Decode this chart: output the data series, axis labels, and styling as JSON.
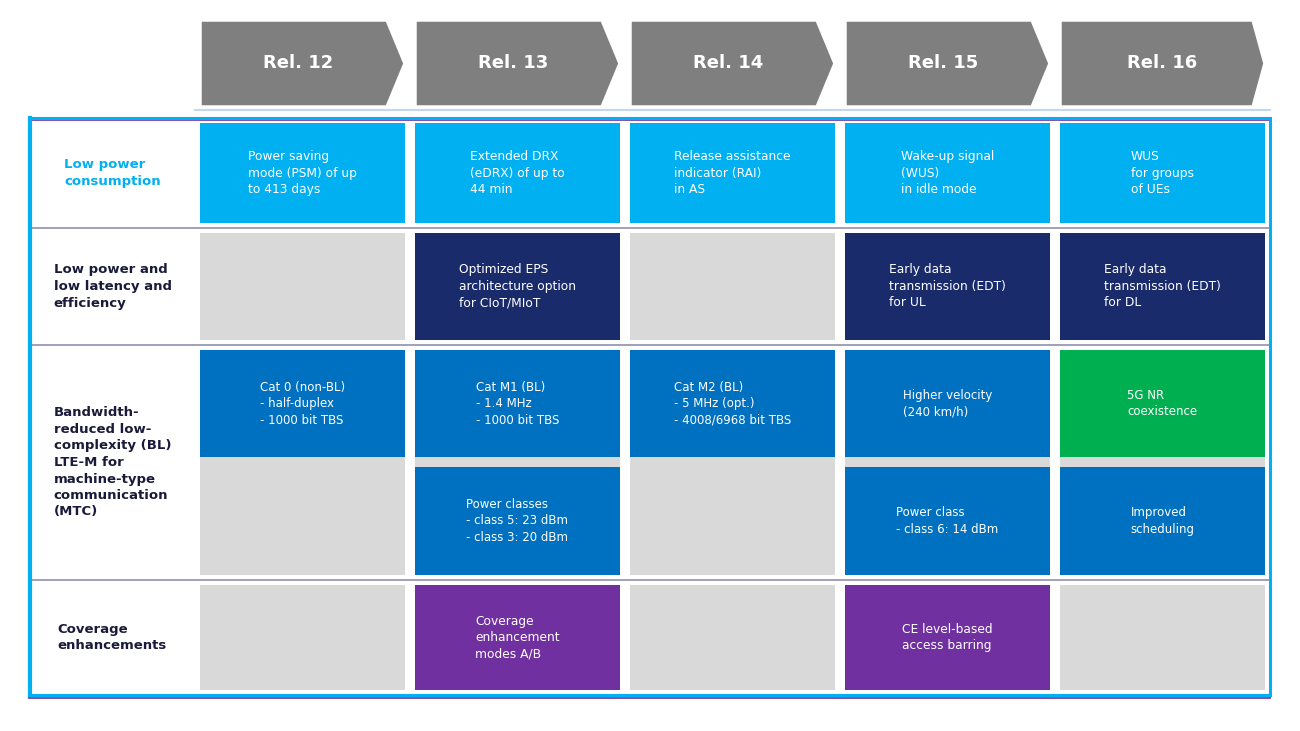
{
  "bg_color": "#ffffff",
  "header_color": "#7f7f7f",
  "header_text_color": "#ffffff",
  "header_labels": [
    "Rel. 12",
    "Rel. 13",
    "Rel. 14",
    "Rel. 15",
    "Rel. 16"
  ],
  "row_label_color": "#00b0f0",
  "row_label_dark_color": "#1f1f5f",
  "row_divider_color": "#7f7fbf",
  "cell_color_gray": "#d9d9d9",
  "outer_border_color": "#00b0f0",
  "outer_border_color2": "#7030a0",
  "row_labels": [
    "Low power\nconsumption",
    "Low power and\nlow latency and\nefficiency",
    "Bandwidth-\nreduced low-\ncomplexity (BL)\nLTE-M for\nmachine-type\ncommunication\n(MTC)",
    "Coverage\nenhancements"
  ],
  "row_label_is_colored": [
    true,
    false,
    false,
    false
  ],
  "cells_row0": [
    [
      "Power saving\nmode (PSM) of up\nto 413 days",
      "#00b0f0"
    ],
    [
      "Extended DRX\n(eDRX) of up to\n44 min",
      "#00b0f0"
    ],
    [
      "Release assistance\nindicator (RAI)\nin AS",
      "#00b0f0"
    ],
    [
      "Wake-up signal\n(WUS)\nin idle mode",
      "#00b0f0"
    ],
    [
      "WUS\nfor groups\nof UEs",
      "#00b0f0"
    ]
  ],
  "cells_row1": [
    [
      "",
      "#d9d9d9"
    ],
    [
      "Optimized EPS\narchitecture option\nfor CIoT/MIoT",
      "#1a2b6b"
    ],
    [
      "",
      "#d9d9d9"
    ],
    [
      "Early data\ntransmission (EDT)\nfor UL",
      "#1a2b6b"
    ],
    [
      "Early data\ntransmission (EDT)\nfor DL",
      "#1a2b6b"
    ]
  ],
  "cells_row2_top": [
    [
      "Cat 0 (non-BL)\n- half-duplex\n- 1000 bit TBS",
      "#0070c0"
    ],
    [
      "Cat M1 (BL)\n- 1.4 MHz\n- 1000 bit TBS",
      "#0070c0"
    ],
    [
      "Cat M2 (BL)\n- 5 MHz (opt.)\n- 4008/6968 bit TBS",
      "#0070c0"
    ],
    [
      "Higher velocity\n(240 km/h)",
      "#0070c0"
    ],
    [
      "5G NR\ncoexistence",
      "#00b050"
    ]
  ],
  "cells_row2_bot": [
    [
      "",
      "#d9d9d9"
    ],
    [
      "Power classes\n- class 5: 23 dBm\n- class 3: 20 dBm",
      "#0070c0"
    ],
    [
      "",
      "#d9d9d9"
    ],
    [
      "Power class\n- class 6: 14 dBm",
      "#0070c0"
    ],
    [
      "Improved\nscheduling",
      "#0070c0"
    ]
  ],
  "cells_row3": [
    [
      "",
      "#d9d9d9"
    ],
    [
      "Coverage\nenhancement\nmodes A/B",
      "#7030a0"
    ],
    [
      "",
      "#d9d9d9"
    ],
    [
      "CE level-based\naccess barring",
      "#7030a0"
    ],
    [
      "",
      "#d9d9d9"
    ]
  ]
}
